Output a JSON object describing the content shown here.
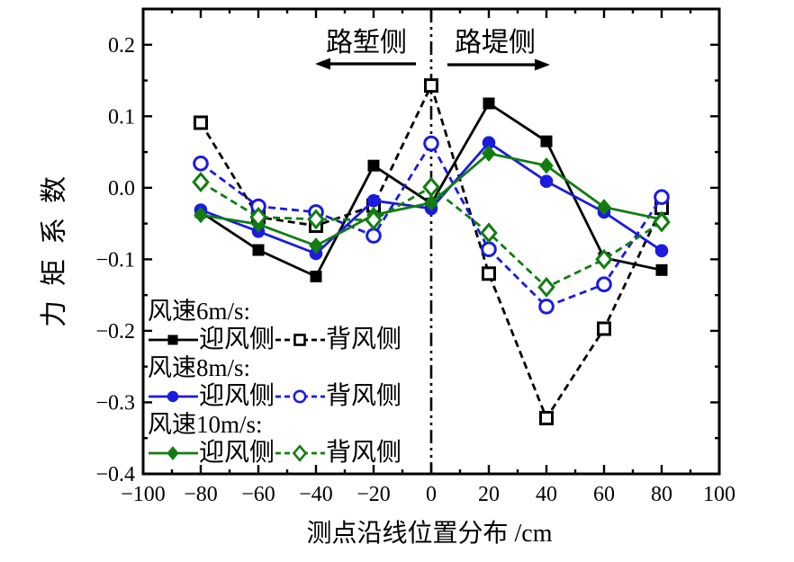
{
  "figure": {
    "y_axis_title": "力矩系数",
    "x_axis_title": "测点沿线位置分布 /cm"
  },
  "annotations": {
    "left_region_label": "路堑侧",
    "right_region_label": "路堤侧"
  },
  "legend": {
    "groups": [
      {
        "title": "风速6m/s:",
        "windward_label": "迎风侧",
        "leeward_label": "背风侧"
      },
      {
        "title": "风速8m/s:",
        "windward_label": "迎风侧",
        "leeward_label": "背风侧"
      },
      {
        "title": "风速10m/s:",
        "windward_label": "迎风侧",
        "leeward_label": "背风侧"
      }
    ]
  },
  "chart_data": {
    "type": "line",
    "title": "",
    "xlabel": "测点沿线位置分布 /cm",
    "ylabel": "力矩系数",
    "xlim": [
      -100,
      100
    ],
    "ylim": [
      -0.4,
      0.25
    ],
    "grid": false,
    "legend_position": "lower-left-inside",
    "reference_line_x": 0,
    "x": [
      -80,
      -60,
      -40,
      -20,
      0,
      20,
      40,
      60,
      80
    ],
    "series": [
      {
        "name": "风速6m/s 迎风侧",
        "slug": "wind6-windward",
        "color": "#000000",
        "line": "solid",
        "marker": "square",
        "fill": "closed",
        "values": [
          -0.034,
          -0.087,
          -0.124,
          0.031,
          -0.022,
          0.118,
          0.065,
          -0.098,
          -0.115
        ]
      },
      {
        "name": "风速6m/s 背风侧",
        "slug": "wind6-leeward",
        "color": "#000000",
        "line": "dashed",
        "marker": "square",
        "fill": "open",
        "values": [
          0.091,
          -0.041,
          -0.053,
          -0.025,
          0.143,
          -0.12,
          -0.322,
          -0.197,
          -0.028
        ]
      },
      {
        "name": "风速8m/s 迎风侧",
        "slug": "wind8-windward",
        "color": "#1b1be0",
        "line": "solid",
        "marker": "circle",
        "fill": "closed",
        "values": [
          -0.031,
          -0.061,
          -0.092,
          -0.018,
          -0.029,
          0.063,
          0.009,
          -0.034,
          -0.088
        ]
      },
      {
        "name": "风速8m/s 背风侧",
        "slug": "wind8-leeward",
        "color": "#1b1be0",
        "line": "dashed",
        "marker": "circle",
        "fill": "open",
        "values": [
          0.034,
          -0.026,
          -0.034,
          -0.067,
          0.062,
          -0.086,
          -0.166,
          -0.135,
          -0.013
        ]
      },
      {
        "name": "风速10m/s 迎风侧",
        "slug": "wind10-windward",
        "color": "#117d11",
        "line": "solid",
        "marker": "diamond",
        "fill": "closed",
        "values": [
          -0.038,
          -0.051,
          -0.081,
          -0.038,
          -0.021,
          0.048,
          0.031,
          -0.027,
          -0.044
        ]
      },
      {
        "name": "风速10m/s 背风侧",
        "slug": "wind10-leeward",
        "color": "#117d11",
        "line": "dashed",
        "marker": "diamond",
        "fill": "open",
        "values": [
          0.008,
          -0.041,
          -0.044,
          -0.045,
          0.001,
          -0.063,
          -0.139,
          -0.1,
          -0.048
        ]
      }
    ],
    "x_ticks": {
      "major": [
        -100,
        -80,
        -60,
        -40,
        -20,
        0,
        20,
        40,
        60,
        80,
        100
      ],
      "minor": [
        -90,
        -70,
        -50,
        -30,
        -10,
        10,
        30,
        50,
        70,
        90
      ],
      "labels": [
        "−100",
        "−80",
        "−60",
        "−40",
        "−20",
        "0",
        "20",
        "40",
        "60",
        "80",
        "100"
      ]
    },
    "y_ticks": {
      "major": [
        0.2,
        0.1,
        0.0,
        -0.1,
        -0.2,
        -0.3,
        -0.4
      ],
      "minor": [
        0.15,
        0.05,
        -0.05,
        -0.15,
        -0.25,
        -0.35
      ],
      "labels": [
        "0.2",
        "0.1",
        "0.0",
        "−0.1",
        "−0.2",
        "−0.3",
        "−0.4"
      ]
    }
  }
}
